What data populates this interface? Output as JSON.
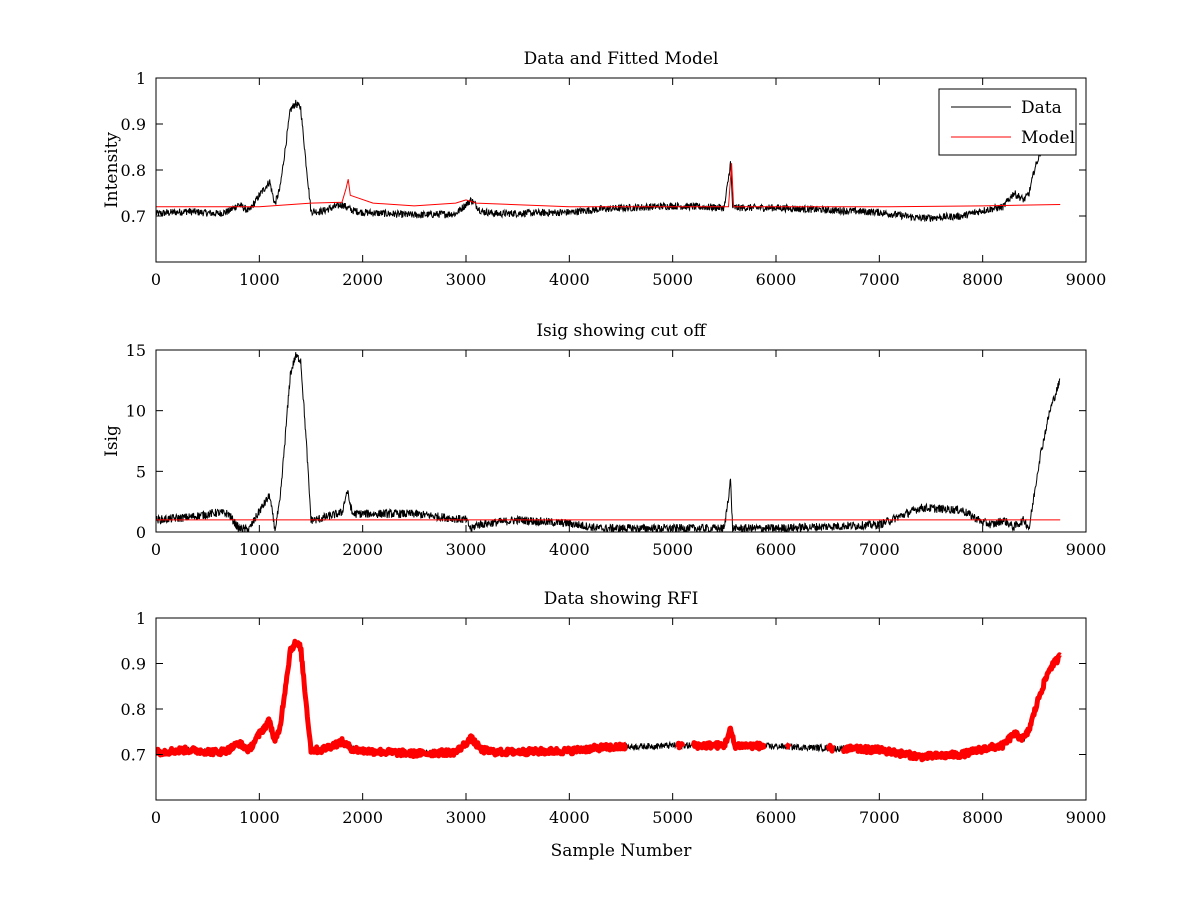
{
  "chart_data": [
    {
      "type": "line",
      "title": "Data and Fitted Model",
      "xlabel": "",
      "ylabel": "Intensity",
      "xlim": [
        0,
        9000
      ],
      "ylim": [
        0.6,
        1.0
      ],
      "xticks": [
        0,
        1000,
        2000,
        3000,
        4000,
        5000,
        6000,
        7000,
        8000,
        9000
      ],
      "xtick_labels": [
        "0",
        "1000",
        "2000",
        "3000",
        "4000",
        "5000",
        "6000",
        "7000",
        "8000",
        "9000"
      ],
      "yticks": [
        0.7,
        0.8,
        0.9,
        1.0
      ],
      "ytick_labels": [
        "0.7",
        "0.8",
        "0.9",
        "1"
      ],
      "legend": {
        "position": "top-right",
        "entries": [
          "Data",
          "Model"
        ]
      },
      "series": [
        {
          "name": "Data",
          "color": "#000000",
          "x": [
            0,
            300,
            600,
            700,
            800,
            900,
            1000,
            1100,
            1150,
            1200,
            1300,
            1350,
            1400,
            1450,
            1500,
            1600,
            1800,
            1900,
            2000,
            2500,
            2900,
            3050,
            3150,
            3300,
            4000,
            4300,
            5000,
            5500,
            5560,
            5580,
            5600,
            6000,
            7000,
            7400,
            7800,
            8000,
            8200,
            8300,
            8400,
            8450,
            8500,
            8560
          ],
          "y": [
            0.705,
            0.71,
            0.705,
            0.71,
            0.725,
            0.71,
            0.745,
            0.775,
            0.725,
            0.76,
            0.93,
            0.945,
            0.935,
            0.82,
            0.71,
            0.71,
            0.725,
            0.712,
            0.708,
            0.702,
            0.705,
            0.735,
            0.71,
            0.705,
            0.708,
            0.715,
            0.722,
            0.718,
            0.815,
            0.72,
            0.718,
            0.718,
            0.708,
            0.695,
            0.7,
            0.712,
            0.72,
            0.75,
            0.735,
            0.75,
            0.8,
            0.84
          ],
          "noise": 0.008
        },
        {
          "name": "Model",
          "color": "#ff0000",
          "x": [
            0,
            1000,
            1500,
            1800,
            1840,
            1860,
            1880,
            2100,
            2500,
            2900,
            3000,
            3100,
            4000,
            5000,
            5540,
            5570,
            5590,
            5620,
            6000,
            7000,
            8000,
            8750
          ],
          "y": [
            0.72,
            0.72,
            0.728,
            0.73,
            0.76,
            0.78,
            0.745,
            0.728,
            0.722,
            0.728,
            0.735,
            0.728,
            0.72,
            0.72,
            0.72,
            0.815,
            0.72,
            0.72,
            0.72,
            0.72,
            0.722,
            0.725
          ]
        }
      ]
    },
    {
      "type": "line",
      "title": "Isig showing cut off",
      "xlabel": "",
      "ylabel": "Isig",
      "xlim": [
        0,
        9000
      ],
      "ylim": [
        0,
        15
      ],
      "xticks": [
        0,
        1000,
        2000,
        3000,
        4000,
        5000,
        6000,
        7000,
        8000,
        9000
      ],
      "xtick_labels": [
        "0",
        "1000",
        "2000",
        "3000",
        "4000",
        "5000",
        "6000",
        "7000",
        "8000",
        "9000"
      ],
      "yticks": [
        0,
        5,
        10,
        15
      ],
      "ytick_labels": [
        "0",
        "5",
        "10",
        "15"
      ],
      "series": [
        {
          "name": "Isig",
          "color": "#000000",
          "x": [
            0,
            300,
            600,
            700,
            800,
            900,
            1000,
            1100,
            1150,
            1200,
            1300,
            1350,
            1400,
            1450,
            1500,
            1550,
            1800,
            1850,
            1900,
            2500,
            3000,
            3050,
            3100,
            3500,
            4000,
            4300,
            5500,
            5560,
            5580,
            5600,
            6000,
            7000,
            7400,
            7800,
            8000,
            8100,
            8200,
            8300,
            8400,
            8450,
            8550,
            8650,
            8750
          ],
          "y": [
            1.0,
            1.2,
            1.6,
            1.5,
            0.3,
            0.2,
            1.7,
            3.0,
            0.2,
            2.5,
            13.0,
            14.5,
            14.2,
            8.0,
            1.0,
            1.0,
            1.6,
            3.4,
            1.5,
            1.5,
            1.0,
            0.2,
            0.6,
            1.0,
            0.7,
            0.3,
            0.3,
            4.3,
            0.3,
            0.3,
            0.3,
            0.6,
            2.0,
            1.8,
            0.8,
            0.6,
            1.0,
            0.4,
            1.0,
            0.3,
            6.0,
            10.0,
            12.5
          ],
          "noise": 0.35
        },
        {
          "name": "Cut off",
          "color": "#ff0000",
          "x": [
            0,
            8750
          ],
          "y": [
            1.0,
            1.0
          ]
        }
      ]
    },
    {
      "type": "scatter",
      "title": "Data showing RFI",
      "xlabel": "Sample Number",
      "ylabel": "",
      "xlim": [
        0,
        9000
      ],
      "ylim": [
        0.6,
        1.0
      ],
      "xticks": [
        0,
        1000,
        2000,
        3000,
        4000,
        5000,
        6000,
        7000,
        8000,
        9000
      ],
      "xtick_labels": [
        "0",
        "1000",
        "2000",
        "3000",
        "4000",
        "5000",
        "6000",
        "7000",
        "8000",
        "9000"
      ],
      "yticks": [
        0.7,
        0.8,
        0.9,
        1.0
      ],
      "ytick_labels": [
        "0.7",
        "0.8",
        "0.9",
        "1"
      ],
      "series": [
        {
          "name": "Data",
          "color": "#000000",
          "x": [
            0,
            300,
            600,
            700,
            800,
            900,
            1000,
            1100,
            1150,
            1200,
            1300,
            1350,
            1400,
            1450,
            1500,
            1600,
            1800,
            1900,
            2000,
            2500,
            2900,
            3050,
            3150,
            3300,
            4000,
            4300,
            5000,
            5500,
            5560,
            5600,
            6000,
            7000,
            7400,
            7800,
            8000,
            8200,
            8300,
            8400,
            8450,
            8550,
            8650,
            8750
          ],
          "y": [
            0.705,
            0.71,
            0.705,
            0.71,
            0.725,
            0.71,
            0.745,
            0.775,
            0.725,
            0.76,
            0.93,
            0.945,
            0.935,
            0.82,
            0.71,
            0.71,
            0.728,
            0.712,
            0.708,
            0.702,
            0.705,
            0.735,
            0.71,
            0.705,
            0.708,
            0.715,
            0.72,
            0.72,
            0.755,
            0.72,
            0.718,
            0.71,
            0.695,
            0.7,
            0.712,
            0.72,
            0.745,
            0.735,
            0.755,
            0.83,
            0.89,
            0.915
          ],
          "noise": 0.007
        },
        {
          "name": "RFI",
          "color": "#ff0000",
          "ranges": [
            [
              0,
              4550
            ],
            [
              5050,
              5100
            ],
            [
              5200,
              5900
            ],
            [
              6100,
              6130
            ],
            [
              6500,
              6550
            ],
            [
              6650,
              8750
            ]
          ]
        }
      ]
    }
  ]
}
